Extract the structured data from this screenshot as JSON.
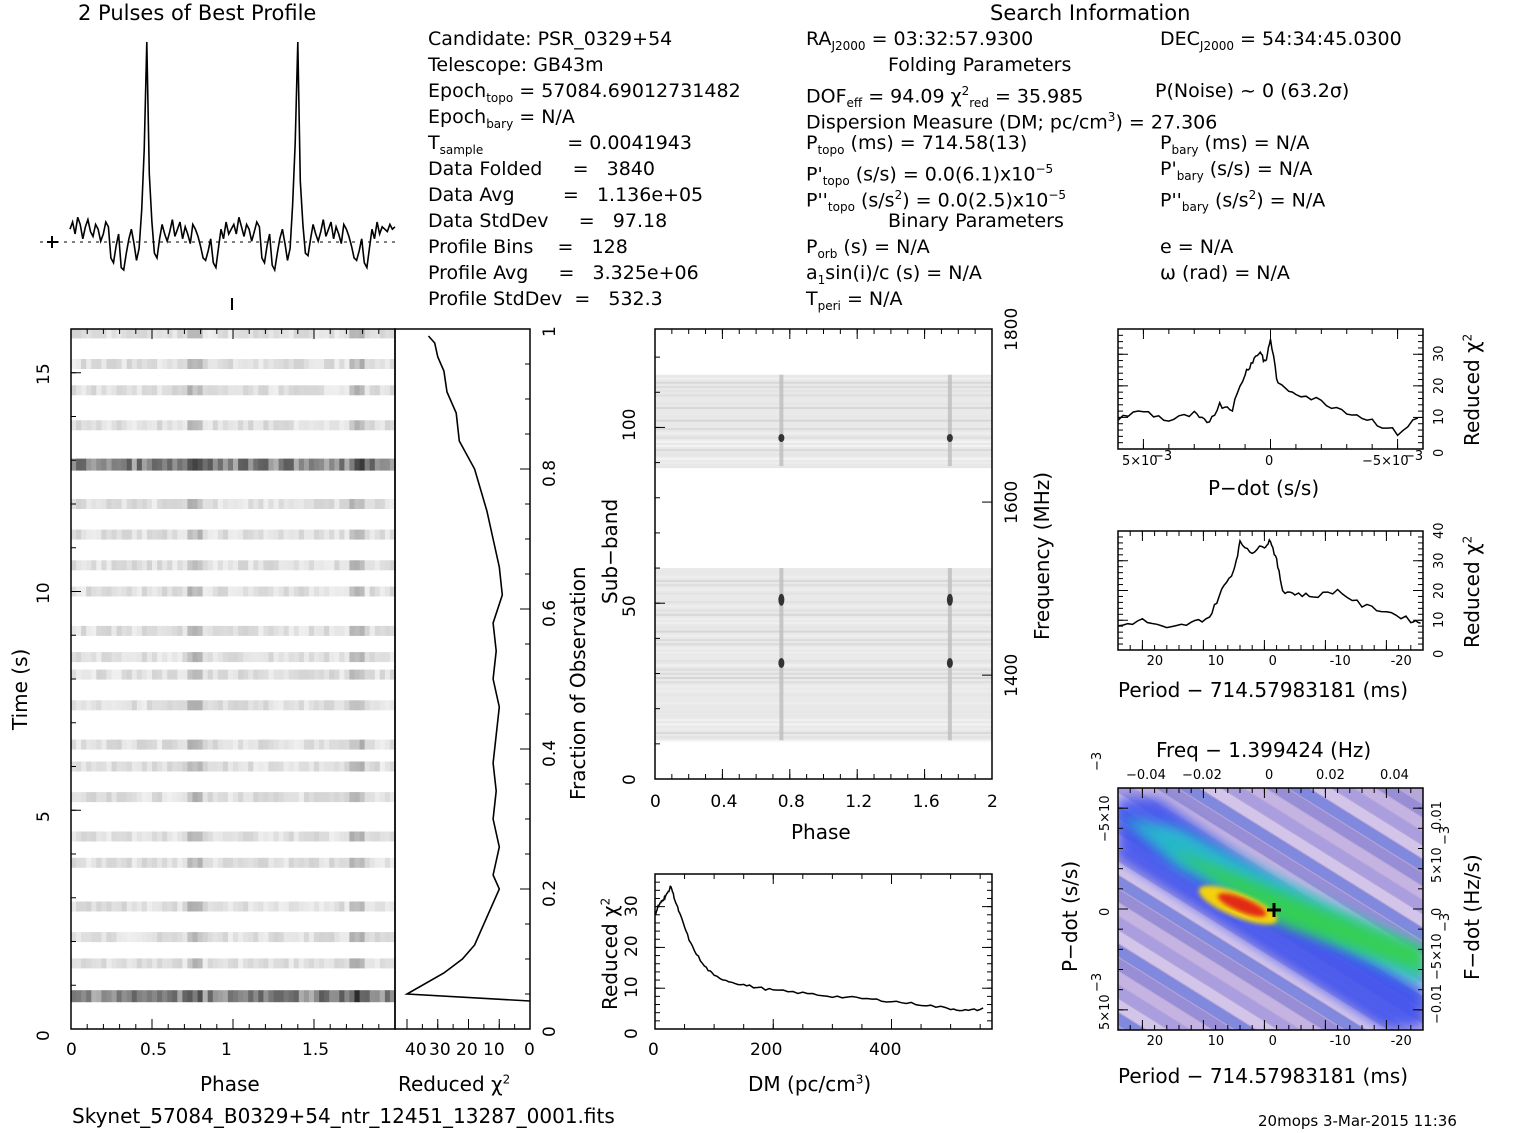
{
  "header": {
    "profile_title": "2 Pulses of Best Profile",
    "search_title": "Search Information",
    "folding_title": "Folding Parameters",
    "binary_title": "Binary Parameters"
  },
  "info_left": {
    "candidate": "Candidate:  PSR_0329+54",
    "telescope": "Telescope:  GB43m",
    "epoch_topo": "= 57084.69012731482",
    "epoch_bary": "= N/A",
    "t_sample": "=   0.0041943",
    "data_folded": "Data Folded     =   3840",
    "data_avg": "Data Avg        =   1.136e+05",
    "data_stddev": "Data StdDev     =   97.18",
    "profile_bins": "Profile Bins    =   128",
    "profile_avg": "Profile Avg     =   3.325e+06",
    "profile_stddev": "Profile StdDev  =   532.3"
  },
  "info_mid": {
    "ra": "= 03:32:57.9300",
    "dof": "= 94.09",
    "chi2": "= 35.985",
    "dm_line": "Dispersion Measure (DM; pc/cm",
    "dm_value": ") = 27.306",
    "p_topo": "(ms) =  714.58(13)",
    "pd_topo": "(s/s) = 0.0(6.1)x10",
    "pdd_topo": "(s/s",
    "pdd_topo_val": ") = 0.0(2.5)x10",
    "p_orb": "(s) = N/A",
    "a1": "sin(i)/c (s) = N/A",
    "t_peri": "= N/A"
  },
  "info_right": {
    "dec": "= 54:34:45.0300",
    "p_noise": "P(Noise) ~ 0   (63.2σ)",
    "p_bary": "(ms) = N/A",
    "pd_bary": "(s/s) = N/A",
    "pdd_bary": "(s/s",
    "pdd_bary_val": ") = N/A",
    "e": "e = N/A",
    "omega": "ω (rad) = N/A"
  },
  "footer": {
    "filename": "Skynet_57084_B0329+54_ntr_12451_13287_0001.fits",
    "stamp": "20mops  3-Mar-2015 11:36"
  },
  "axes": {
    "time_label": "Time (s)",
    "phase_label": "Phase",
    "redchi_label": "Reduced χ",
    "fraction_label": "Fraction of Observation",
    "subband_label": "Sub−band",
    "frequency_label": "Frequency (MHz)",
    "dm_label": "DM (pc/cm",
    "pdot_label": "P−dot (s/s)",
    "period_label": "Period − 714.57983181 (ms)",
    "freq_label": "Freq − 1.399424 (Hz)",
    "fdot_label": "F−dot (Hz/s)"
  },
  "chart_data": [
    {
      "type": "line",
      "title": "2 Pulses of Best Profile",
      "xlabel": "Phase",
      "ylabel": "",
      "xlim": [
        0,
        2
      ],
      "peaks_at_phase": [
        0.75,
        1.75
      ],
      "values": [
        0.22,
        0.25,
        0.2,
        0.27,
        0.24,
        0.18,
        0.23,
        0.26,
        0.21,
        0.19,
        0.24,
        0.22,
        0.17,
        0.2,
        0.25,
        0.23,
        0.1,
        0.08,
        0.15,
        0.2,
        0.06,
        0.05,
        0.12,
        0.18,
        0.22,
        0.16,
        0.09,
        0.14,
        0.3,
        0.55,
        1.0,
        0.45,
        0.25,
        0.12,
        0.1,
        0.18,
        0.24,
        0.2,
        0.17,
        0.21,
        0.26,
        0.19,
        0.22,
        0.25,
        0.18,
        0.23,
        0.2,
        0.16,
        0.24,
        0.22,
        0.19,
        0.15,
        0.1,
        0.09,
        0.13,
        0.18,
        0.08,
        0.06,
        0.14,
        0.22,
        0.18,
        0.25,
        0.2,
        0.22,
        0.24,
        0.2,
        0.27,
        0.23,
        0.19,
        0.24,
        0.22,
        0.17,
        0.21,
        0.25,
        0.23,
        0.1,
        0.08,
        0.15,
        0.2,
        0.07,
        0.05,
        0.12,
        0.18,
        0.22,
        0.16,
        0.09,
        0.14,
        0.32,
        0.58,
        1.0,
        0.42,
        0.24,
        0.12,
        0.11,
        0.18,
        0.24,
        0.2,
        0.17,
        0.21,
        0.26,
        0.19,
        0.22,
        0.25,
        0.18,
        0.23,
        0.2,
        0.16,
        0.24,
        0.22,
        0.19,
        0.15,
        0.1,
        0.09,
        0.13,
        0.18,
        0.08,
        0.06,
        0.14,
        0.22,
        0.18,
        0.25,
        0.2,
        0.23,
        0.22,
        0.21,
        0.24,
        0.22,
        0.23
      ]
    },
    {
      "type": "heatmap",
      "xlabel": "Phase",
      "ylabel": "Time (s)",
      "xlim": [
        0,
        2
      ],
      "ylim": [
        0,
        16
      ],
      "dark_rows_at_time": [
        0.75,
        12.9
      ],
      "light_rows_at_time": [
        1.5,
        2.1,
        2.8,
        3.8,
        4.4,
        5.3,
        6.0,
        6.5,
        7.4,
        8.1,
        8.5,
        9.1,
        10.0,
        10.6,
        11.3,
        12.0,
        13.8,
        14.6,
        15.2,
        15.9
      ]
    },
    {
      "type": "line",
      "xlabel": "Reduced χ2",
      "ylabel": "Fraction of Observation",
      "xlim": [
        40,
        0
      ],
      "ylim": [
        0,
        1
      ],
      "x": [
        0,
        40,
        28,
        22,
        18,
        10,
        12,
        10,
        12,
        11,
        12,
        11,
        10,
        12,
        11,
        12,
        9,
        10,
        12,
        14,
        18,
        23,
        24,
        27,
        28,
        30,
        31,
        33
      ],
      "y": [
        0.04,
        0.05,
        0.08,
        0.1,
        0.12,
        0.2,
        0.22,
        0.26,
        0.3,
        0.34,
        0.38,
        0.42,
        0.46,
        0.5,
        0.54,
        0.58,
        0.62,
        0.66,
        0.7,
        0.74,
        0.8,
        0.84,
        0.88,
        0.91,
        0.94,
        0.96,
        0.98,
        0.99
      ]
    },
    {
      "type": "heatmap",
      "xlabel": "Phase",
      "ylabel": "Sub−band",
      "y2label": "Frequency (MHz)",
      "xlim": [
        0,
        2
      ],
      "ylim": [
        0,
        128
      ],
      "y2lim": [
        1280,
        1800
      ],
      "filled_bands": [
        [
          11,
          60
        ],
        [
          89,
          115
        ]
      ],
      "pulse_phase": [
        0.75,
        1.75
      ]
    },
    {
      "type": "line",
      "xlabel": "DM (pc/cm3)",
      "ylabel": "Reduced χ2",
      "xlim": [
        0,
        570
      ],
      "ylim": [
        0,
        38
      ],
      "x": [
        0,
        5,
        10,
        15,
        20,
        27,
        35,
        45,
        60,
        80,
        100,
        130,
        160,
        200,
        250,
        300,
        350,
        400,
        450,
        500,
        530,
        560
      ],
      "y": [
        28,
        30,
        31,
        32,
        33,
        35,
        31,
        27,
        21,
        16,
        13,
        11.5,
        10.5,
        9.5,
        8.8,
        8,
        7.5,
        6.8,
        6,
        5,
        4.5,
        5
      ]
    },
    {
      "type": "line",
      "xlabel": "P−dot (s/s)",
      "ylabel": "Reduced χ2",
      "xlim": [
        0.006,
        -0.006
      ],
      "ylim": [
        0,
        38
      ],
      "x": [
        0.006,
        0.005,
        0.004,
        0.003,
        0.0025,
        0.002,
        0.0015,
        0.001,
        0.0007,
        0.0004,
        0.0002,
        0,
        -0.0003,
        -0.001,
        -0.002,
        -0.003,
        -0.004,
        -0.005,
        -0.006
      ],
      "y": [
        10,
        12,
        9,
        11,
        8,
        14,
        13,
        24,
        28,
        31,
        27,
        35,
        20,
        18,
        15,
        12,
        9,
        5,
        11
      ]
    },
    {
      "type": "line",
      "xlabel": "Period − 714.57983181 (ms)",
      "ylabel": "Reduced χ2",
      "xlim": [
        26,
        -24
      ],
      "ylim": [
        0,
        40
      ],
      "x": [
        26,
        22,
        18,
        14,
        11,
        9,
        7,
        6,
        4,
        2,
        1,
        0,
        -1,
        -3,
        -6,
        -10,
        -14,
        -18,
        -22,
        -24
      ],
      "y": [
        8,
        10,
        7,
        9,
        11,
        20,
        27,
        36,
        33,
        35,
        37,
        30,
        20,
        19,
        18,
        20,
        15,
        13,
        10,
        9
      ]
    },
    {
      "type": "heatmap",
      "xlabel": "Period − 714.57983181 (ms)",
      "ylabel": "P−dot (s/s)",
      "x2label": "Freq − 1.399424 (Hz)",
      "y2label": "F−dot (Hz/s)",
      "xlim": [
        26,
        -24
      ],
      "ylim": [
        0.006,
        -0.006
      ],
      "peak": [
        0,
        0
      ]
    }
  ]
}
